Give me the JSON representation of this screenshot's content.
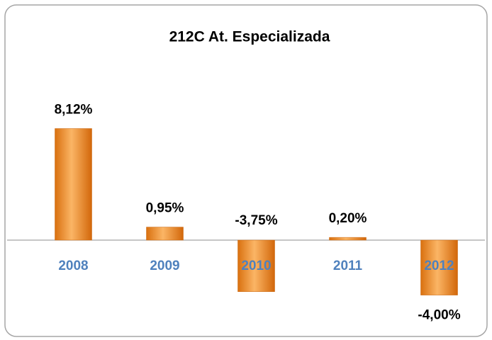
{
  "chart_data": {
    "type": "bar",
    "title": "212C At. Especializada",
    "categories": [
      "2008",
      "2009",
      "2010",
      "2011",
      "2012"
    ],
    "values": [
      8.12,
      0.95,
      -3.75,
      0.2,
      -4.0
    ],
    "value_labels": [
      "8,12%",
      "0,95%",
      "-3,75%",
      "0,20%",
      "-4,00%"
    ],
    "color": "#f39a3c"
  }
}
